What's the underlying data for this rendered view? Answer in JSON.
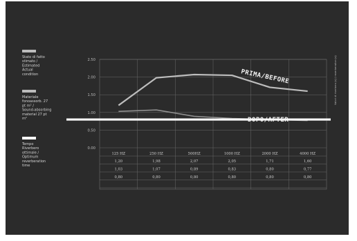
{
  "colors": {
    "background": "#2b2b2b",
    "grid": "#6a6a6a",
    "series_prima": "#bdbdbd",
    "series_dopo": "#8f8f8f",
    "series_optimum": "#ffffff",
    "text": "#d8d8d8"
  },
  "side_note": "Valori di riverbero (s) / reverberation (s)",
  "chart_data": {
    "type": "line",
    "categories": [
      "125 HZ",
      "250 HZ",
      "500HZ",
      "1000 HZ",
      "2000 HZ",
      "4000 HZ"
    ],
    "ylim": [
      0,
      2.5
    ],
    "yticks": [
      "0.00",
      "0.50",
      "1.00",
      "1.50",
      "2.00",
      "2.50"
    ],
    "legend_placement": "left",
    "series": [
      {
        "name": "Stato di fatto stimato / Estimated Actual condition",
        "label": "PRIMA/BEFORE",
        "values": [
          1.2,
          1.98,
          2.07,
          2.05,
          1.71,
          1.6
        ],
        "row": [
          "1,20",
          "1,98",
          "2,07",
          "2,05",
          "1,71",
          "1,60"
        ]
      },
      {
        "name": "Materiale fonoassorb. 27 pt m² / Sound-absorbing material 27 pt m²",
        "label": "DOPO/AFTER",
        "values": [
          1.03,
          1.07,
          0.89,
          0.83,
          0.8,
          0.77
        ],
        "row": [
          "1,03",
          "1,07",
          "0,89",
          "0,83",
          "0,80",
          "0,77"
        ]
      },
      {
        "name": "Tempo Riverbero ottimale / Optimum reverberation time",
        "label": "",
        "values": [
          0.8,
          0.8,
          0.8,
          0.8,
          0.8,
          0.8
        ],
        "row": [
          "0,80",
          "0,80",
          "0,80",
          "0,80",
          "0,80",
          "0,80"
        ]
      }
    ]
  }
}
